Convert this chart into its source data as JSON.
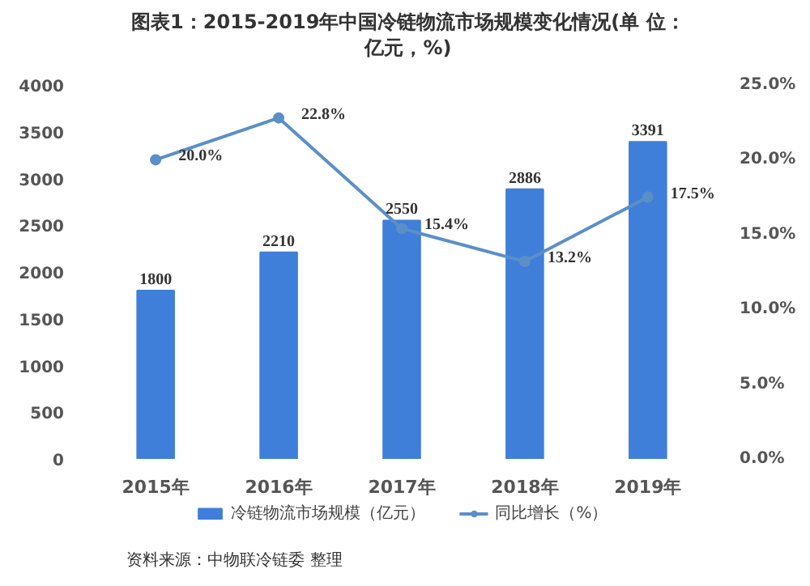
{
  "chart_data": {
    "type": "bar",
    "title": "图表1：2015-2019年中国冷链物流市场规模变化情况(单 位：亿元，%)",
    "categories": [
      "2015年",
      "2016年",
      "2017年",
      "2018年",
      "2019年"
    ],
    "series": [
      {
        "name": "冷链物流市场规模（亿元）",
        "color": "#3f7fd9",
        "values": [
          1800,
          2210,
          2550,
          2886,
          3391
        ]
      },
      {
        "name": "同比增长（%）",
        "type": "line",
        "axis": "y2",
        "color": "#5b8fc7",
        "values": [
          20.0,
          22.8,
          15.4,
          13.2,
          17.5
        ],
        "value_labels": [
          "20.0%",
          "22.8%",
          "15.4%",
          "13.2%",
          "17.5%"
        ]
      }
    ],
    "data_labels": true,
    "marker": "circle",
    "line_style": "solid",
    "ylim": [
      0,
      4000
    ],
    "yticks": [
      0,
      500,
      1000,
      1500,
      2000,
      2500,
      3000,
      3500,
      4000
    ],
    "y2lim": [
      0,
      25
    ],
    "y2ticks": [
      {
        "value": 0,
        "label": "0.0%"
      },
      {
        "value": 5,
        "label": "5.0%"
      },
      {
        "value": 10,
        "label": "10.0%"
      },
      {
        "value": 15,
        "label": "15.0%"
      },
      {
        "value": 20,
        "label": "20.0%"
      },
      {
        "value": 25,
        "label": "25.0%"
      }
    ],
    "grid": false,
    "legend": "bottom",
    "annotations": [
      "资料来源：中物联冷链委 整理"
    ]
  }
}
